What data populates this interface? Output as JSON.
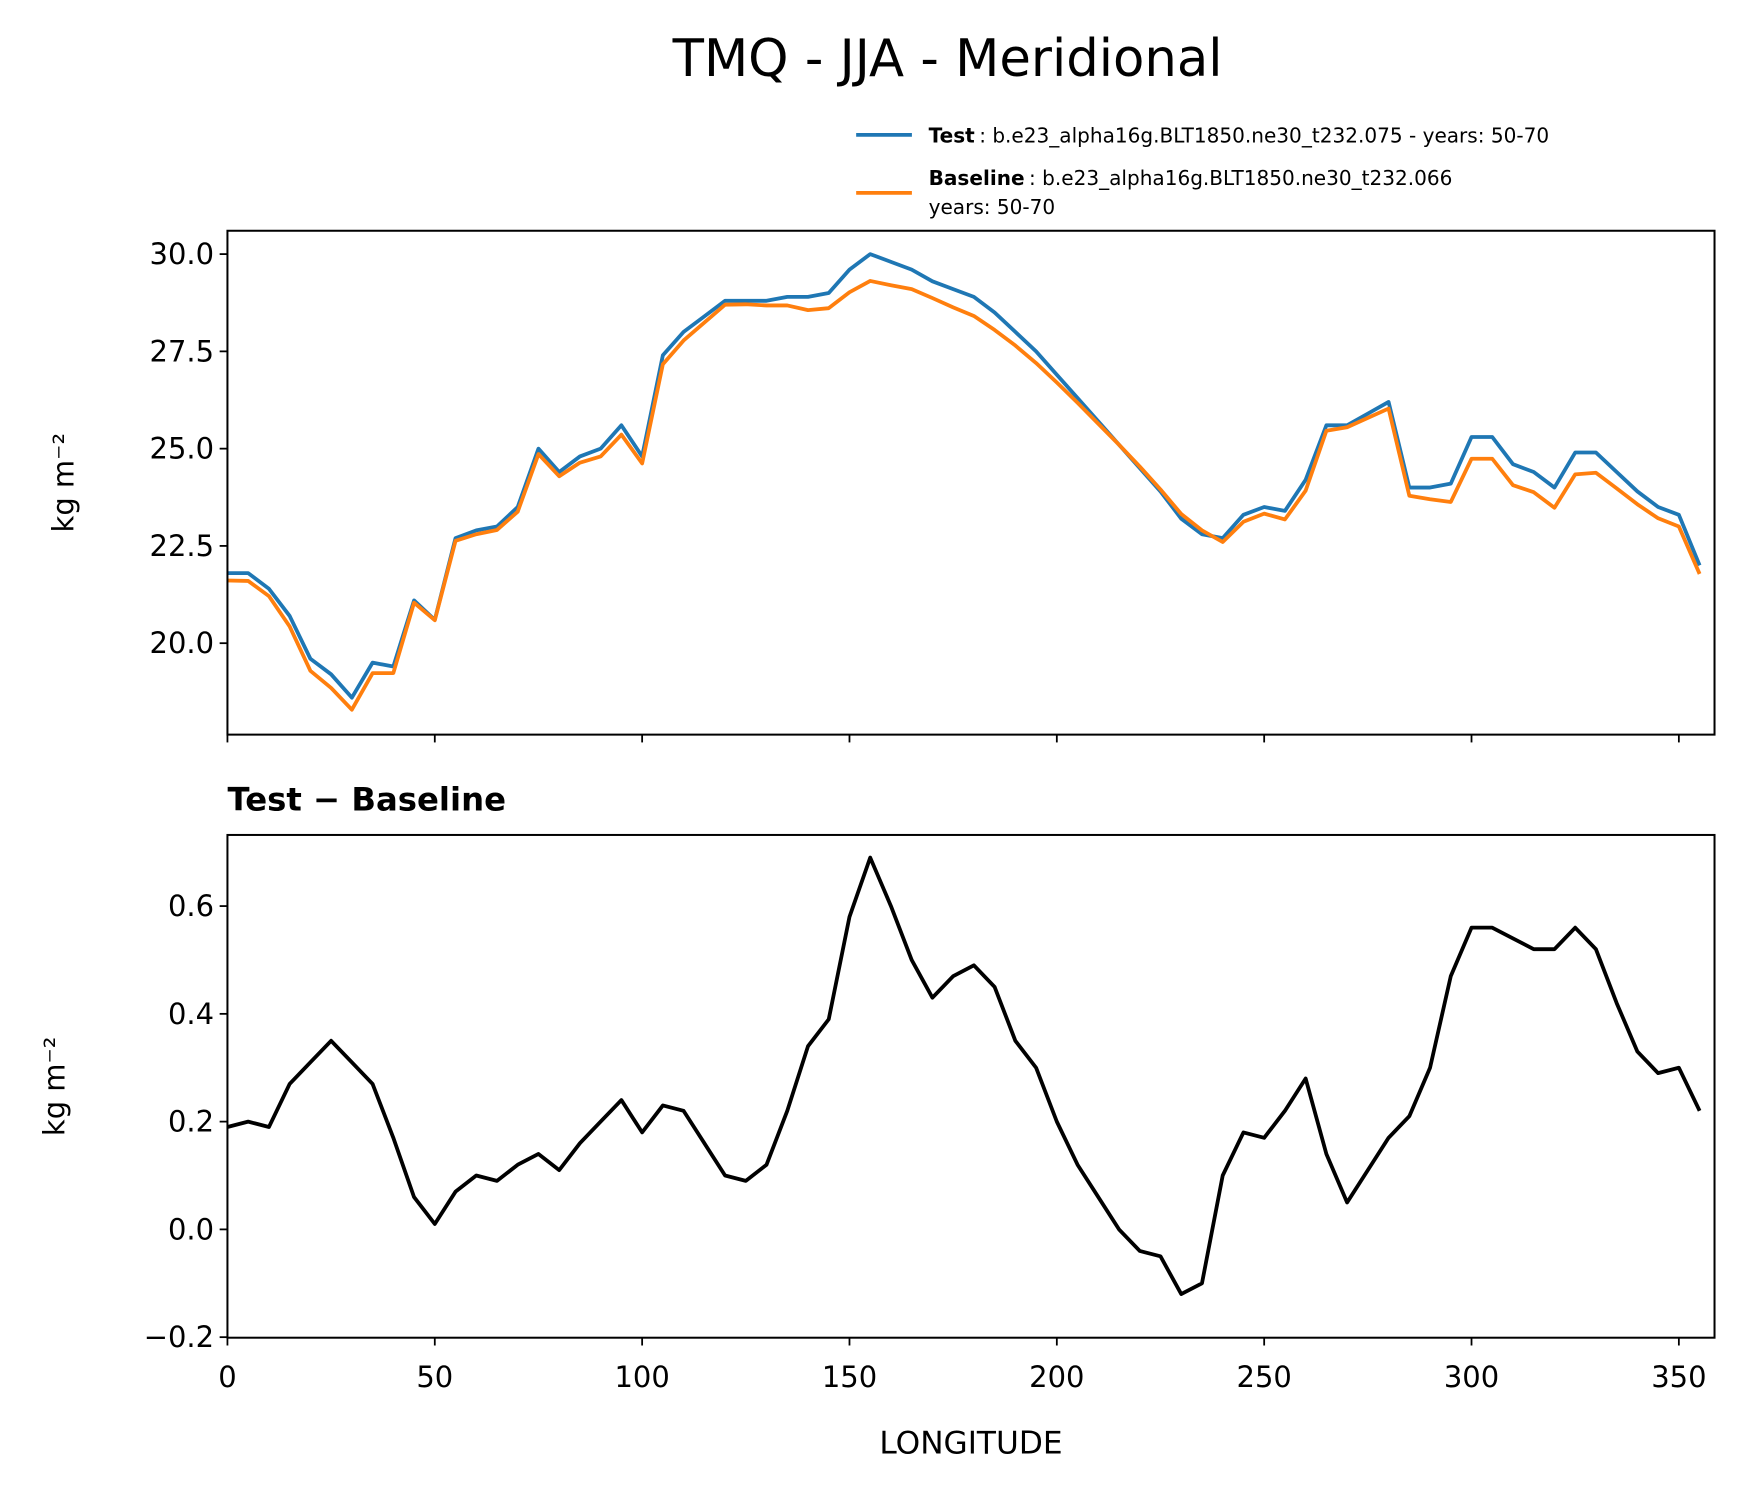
{
  "chart_data": [
    {
      "type": "line",
      "title": "TMQ - JJA - Meridional",
      "ylabel": "kg m⁻²",
      "x": [
        0,
        5,
        10,
        15,
        20,
        25,
        30,
        35,
        40,
        45,
        50,
        55,
        60,
        65,
        70,
        75,
        80,
        85,
        90,
        95,
        100,
        105,
        110,
        115,
        120,
        125,
        130,
        135,
        140,
        145,
        150,
        155,
        160,
        165,
        170,
        175,
        180,
        185,
        190,
        195,
        200,
        205,
        210,
        215,
        220,
        225,
        230,
        235,
        240,
        245,
        250,
        255,
        260,
        265,
        270,
        275,
        280,
        285,
        290,
        295,
        300,
        305,
        310,
        315,
        320,
        325,
        330,
        335,
        340,
        345,
        350,
        355
      ],
      "series": [
        {
          "name": "Test",
          "description": [
            ": b.e23_alpha16g.BLT1850.ne30_t232.075 - years: 50-70"
          ],
          "color": "#1f77b4",
          "values": [
            21.8,
            21.8,
            21.4,
            20.7,
            19.6,
            19.2,
            18.6,
            19.5,
            19.4,
            21.1,
            20.6,
            22.7,
            22.9,
            23.0,
            23.5,
            25.0,
            24.4,
            24.8,
            25.0,
            25.6,
            24.8,
            27.4,
            28.0,
            28.4,
            28.8,
            28.8,
            28.8,
            28.9,
            28.9,
            29.0,
            29.6,
            30.0,
            29.8,
            29.6,
            29.3,
            29.1,
            28.9,
            28.5,
            28.0,
            27.5,
            26.9,
            26.3,
            25.7,
            25.1,
            24.5,
            23.9,
            23.2,
            22.8,
            22.7,
            23.3,
            23.5,
            23.4,
            24.2,
            25.6,
            25.6,
            25.9,
            26.2,
            24.0,
            24.0,
            24.1,
            25.3,
            25.3,
            24.6,
            24.4,
            24.0,
            24.9,
            24.9,
            24.4,
            23.9,
            23.5,
            23.3,
            22.0
          ]
        },
        {
          "name": "Baseline",
          "description": [
            ": b.e23_alpha16g.BLT1850.ne30_t232.066",
            "years: 50-70"
          ],
          "color": "#ff7f0e",
          "values": [
            21.61,
            21.6,
            21.21,
            20.43,
            19.29,
            18.85,
            18.29,
            19.23,
            19.23,
            21.04,
            20.59,
            22.63,
            22.8,
            22.91,
            23.38,
            24.86,
            24.29,
            24.64,
            24.8,
            25.36,
            24.62,
            27.17,
            27.78,
            28.24,
            28.7,
            28.71,
            28.68,
            28.68,
            28.56,
            28.61,
            29.02,
            29.31,
            29.2,
            29.1,
            28.87,
            28.63,
            28.41,
            28.05,
            27.65,
            27.2,
            26.7,
            26.18,
            25.64,
            25.1,
            24.54,
            23.95,
            23.32,
            22.9,
            22.6,
            23.12,
            23.33,
            23.18,
            23.92,
            25.46,
            25.55,
            25.79,
            26.03,
            23.79,
            23.7,
            23.63,
            24.74,
            24.74,
            24.06,
            23.88,
            23.48,
            24.34,
            24.38,
            23.98,
            23.57,
            23.21,
            23.0,
            21.78
          ]
        }
      ],
      "xlim": [
        0,
        358.6
      ],
      "xticks": [
        0,
        50,
        100,
        150,
        200,
        250,
        300,
        350
      ],
      "show_xtick_labels": false,
      "ylim": [
        17.65,
        30.6
      ],
      "yticks": [
        {
          "value": 20,
          "label": "20.0"
        },
        {
          "value": 22.5,
          "label": "22.5"
        },
        {
          "value": 25,
          "label": "25.0"
        },
        {
          "value": 27.5,
          "label": "27.5"
        },
        {
          "value": 30,
          "label": "30.0"
        }
      ],
      "legend": "upper right outside"
    },
    {
      "type": "line",
      "title": "Test − Baseline",
      "ylabel": "kg m⁻²",
      "xlabel": "LONGITUDE",
      "x": [
        0,
        5,
        10,
        15,
        20,
        25,
        30,
        35,
        40,
        45,
        50,
        55,
        60,
        65,
        70,
        75,
        80,
        85,
        90,
        95,
        100,
        105,
        110,
        115,
        120,
        125,
        130,
        135,
        140,
        145,
        150,
        155,
        160,
        165,
        170,
        175,
        180,
        185,
        190,
        195,
        200,
        205,
        210,
        215,
        220,
        225,
        230,
        235,
        240,
        245,
        250,
        255,
        260,
        265,
        270,
        275,
        280,
        285,
        290,
        295,
        300,
        305,
        310,
        315,
        320,
        325,
        330,
        335,
        340,
        345,
        350,
        355
      ],
      "series": [
        {
          "color": "#000000",
          "values": [
            0.19,
            0.2,
            0.19,
            0.27,
            0.31,
            0.35,
            0.31,
            0.27,
            0.17,
            0.06,
            0.01,
            0.07,
            0.1,
            0.09,
            0.12,
            0.14,
            0.11,
            0.16,
            0.2,
            0.24,
            0.18,
            0.23,
            0.22,
            0.16,
            0.1,
            0.09,
            0.12,
            0.22,
            0.34,
            0.39,
            0.58,
            0.69,
            0.6,
            0.5,
            0.43,
            0.47,
            0.49,
            0.45,
            0.35,
            0.3,
            0.2,
            0.12,
            0.06,
            0.0,
            -0.04,
            -0.05,
            -0.12,
            -0.1,
            0.1,
            0.18,
            0.17,
            0.22,
            0.28,
            0.14,
            0.05,
            0.11,
            0.17,
            0.21,
            0.3,
            0.47,
            0.56,
            0.56,
            0.54,
            0.52,
            0.52,
            0.56,
            0.52,
            0.42,
            0.33,
            0.29,
            0.3,
            0.22
          ]
        }
      ],
      "xlim": [
        0,
        358.6
      ],
      "xticks": [
        0,
        50,
        100,
        150,
        200,
        250,
        300,
        350
      ],
      "show_xtick_labels": true,
      "ylim": [
        -0.201,
        0.732
      ],
      "yticks": [
        {
          "value": -0.2,
          "label": "−0.2"
        },
        {
          "value": 0,
          "label": "0.0"
        },
        0.2,
        0.4,
        0.6
      ]
    }
  ]
}
